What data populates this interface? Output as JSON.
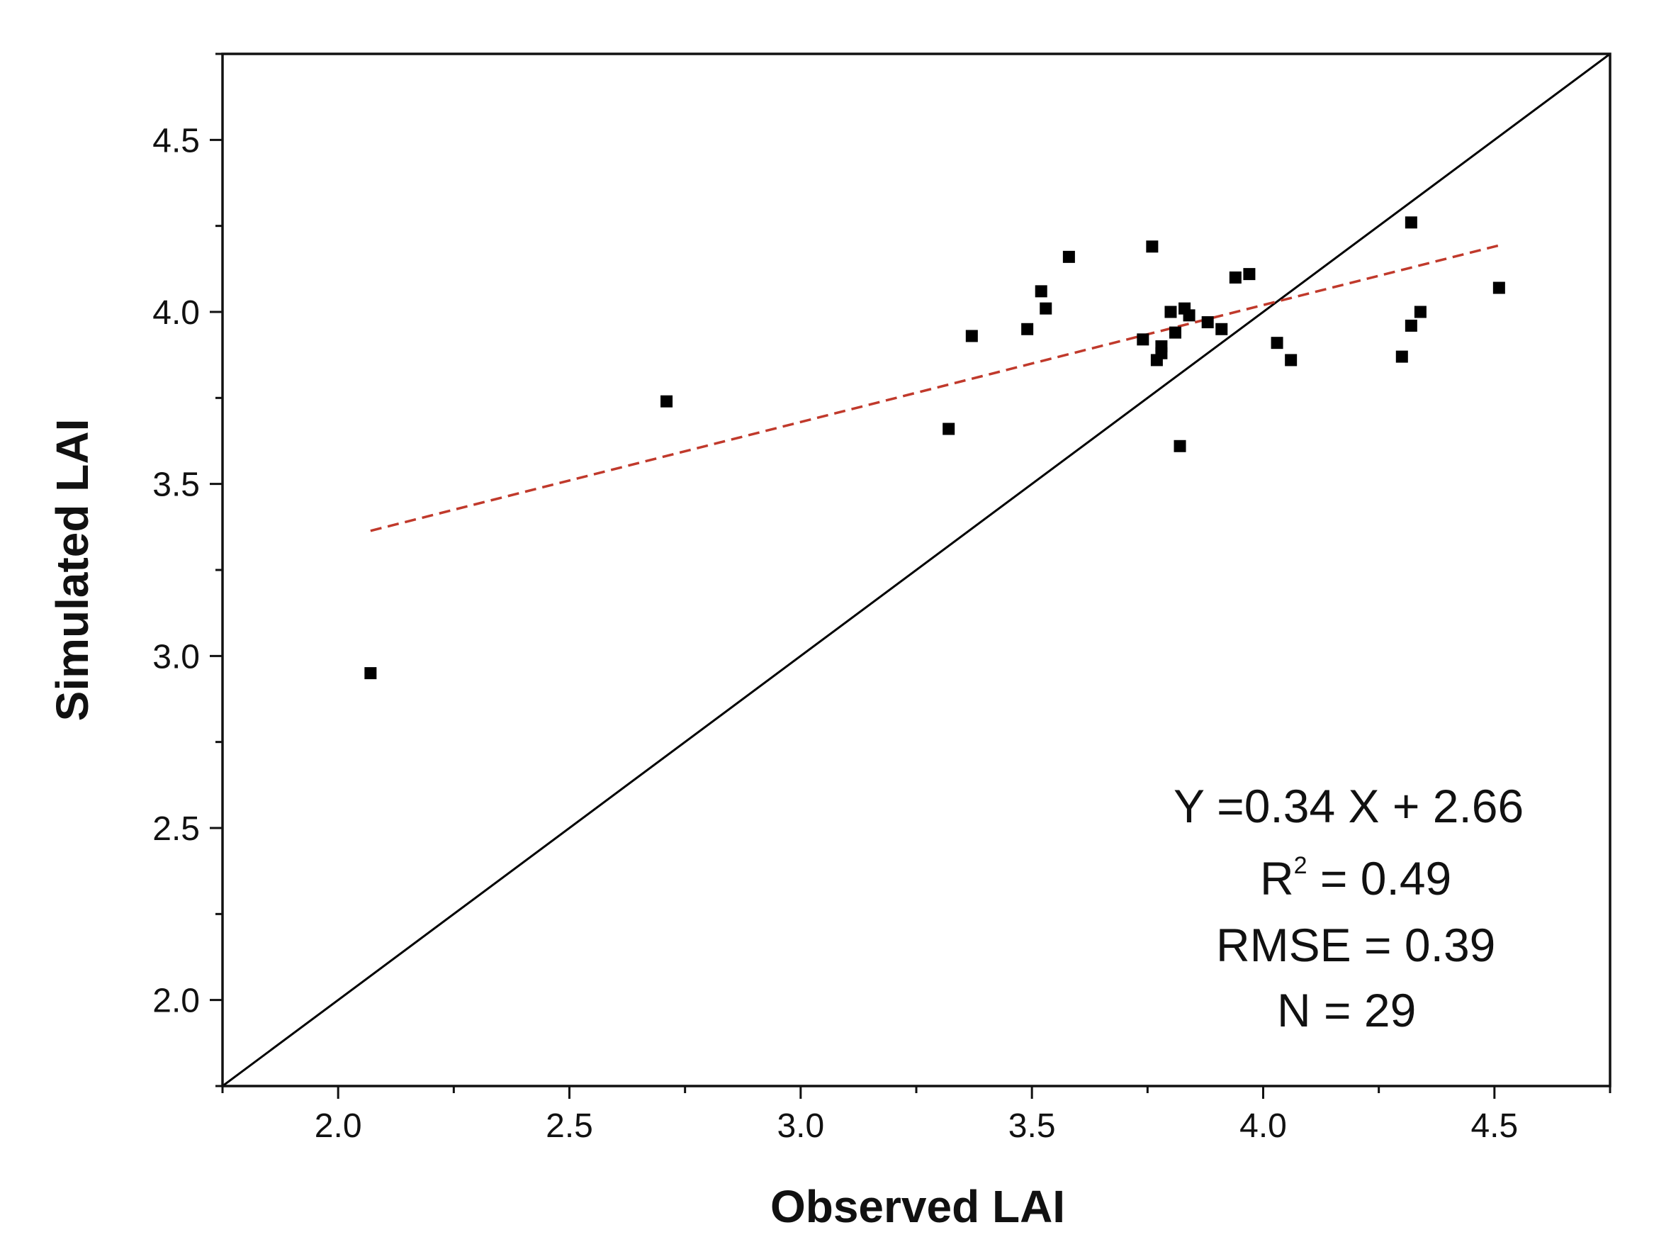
{
  "chart_data": {
    "type": "scatter",
    "xlabel": "Observed LAI",
    "ylabel": "Simulated LAI",
    "xlim": [
      1.75,
      4.75
    ],
    "ylim": [
      1.75,
      4.75
    ],
    "x_ticks": [
      "2.0",
      "2.5",
      "3.0",
      "3.5",
      "4.0",
      "4.5"
    ],
    "y_ticks": [
      "2.0",
      "2.5",
      "3.0",
      "3.5",
      "4.0",
      "4.5"
    ],
    "marker_color": "#000000",
    "fit_line_color": "#c0392b",
    "identity_line_color": "#000000",
    "series": [
      {
        "name": "Observed vs Simulated LAI",
        "points": [
          {
            "x": 2.07,
            "y": 2.95
          },
          {
            "x": 2.71,
            "y": 3.74
          },
          {
            "x": 3.32,
            "y": 3.66
          },
          {
            "x": 3.37,
            "y": 3.93
          },
          {
            "x": 3.49,
            "y": 3.95
          },
          {
            "x": 3.52,
            "y": 4.06
          },
          {
            "x": 3.53,
            "y": 4.01
          },
          {
            "x": 3.58,
            "y": 4.16
          },
          {
            "x": 3.74,
            "y": 3.92
          },
          {
            "x": 3.76,
            "y": 4.19
          },
          {
            "x": 3.77,
            "y": 3.86
          },
          {
            "x": 3.78,
            "y": 3.88
          },
          {
            "x": 3.78,
            "y": 3.9
          },
          {
            "x": 3.8,
            "y": 4.0
          },
          {
            "x": 3.81,
            "y": 3.94
          },
          {
            "x": 3.82,
            "y": 3.61
          },
          {
            "x": 3.83,
            "y": 4.01
          },
          {
            "x": 3.84,
            "y": 3.99
          },
          {
            "x": 3.88,
            "y": 3.97
          },
          {
            "x": 3.91,
            "y": 3.95
          },
          {
            "x": 3.94,
            "y": 4.1
          },
          {
            "x": 3.97,
            "y": 4.11
          },
          {
            "x": 4.03,
            "y": 3.91
          },
          {
            "x": 4.06,
            "y": 3.86
          },
          {
            "x": 4.3,
            "y": 3.87
          },
          {
            "x": 4.32,
            "y": 3.96
          },
          {
            "x": 4.32,
            "y": 4.26
          },
          {
            "x": 4.34,
            "y": 4.0
          },
          {
            "x": 4.51,
            "y": 4.07
          }
        ]
      }
    ],
    "fit_line": {
      "slope": 0.34,
      "intercept": 2.66,
      "x_start": 2.07,
      "x_end": 4.51,
      "style": "dashed"
    },
    "identity_line": {
      "x_start": 1.75,
      "x_end": 4.75
    },
    "annotations": {
      "equation": "Y =0.34 X + 2.66",
      "r2_prefix": "R",
      "r2_superscript": "2",
      "r2_value": " =  0.49",
      "rmse": "RMSE = 0.39",
      "n": "N = 29"
    }
  }
}
